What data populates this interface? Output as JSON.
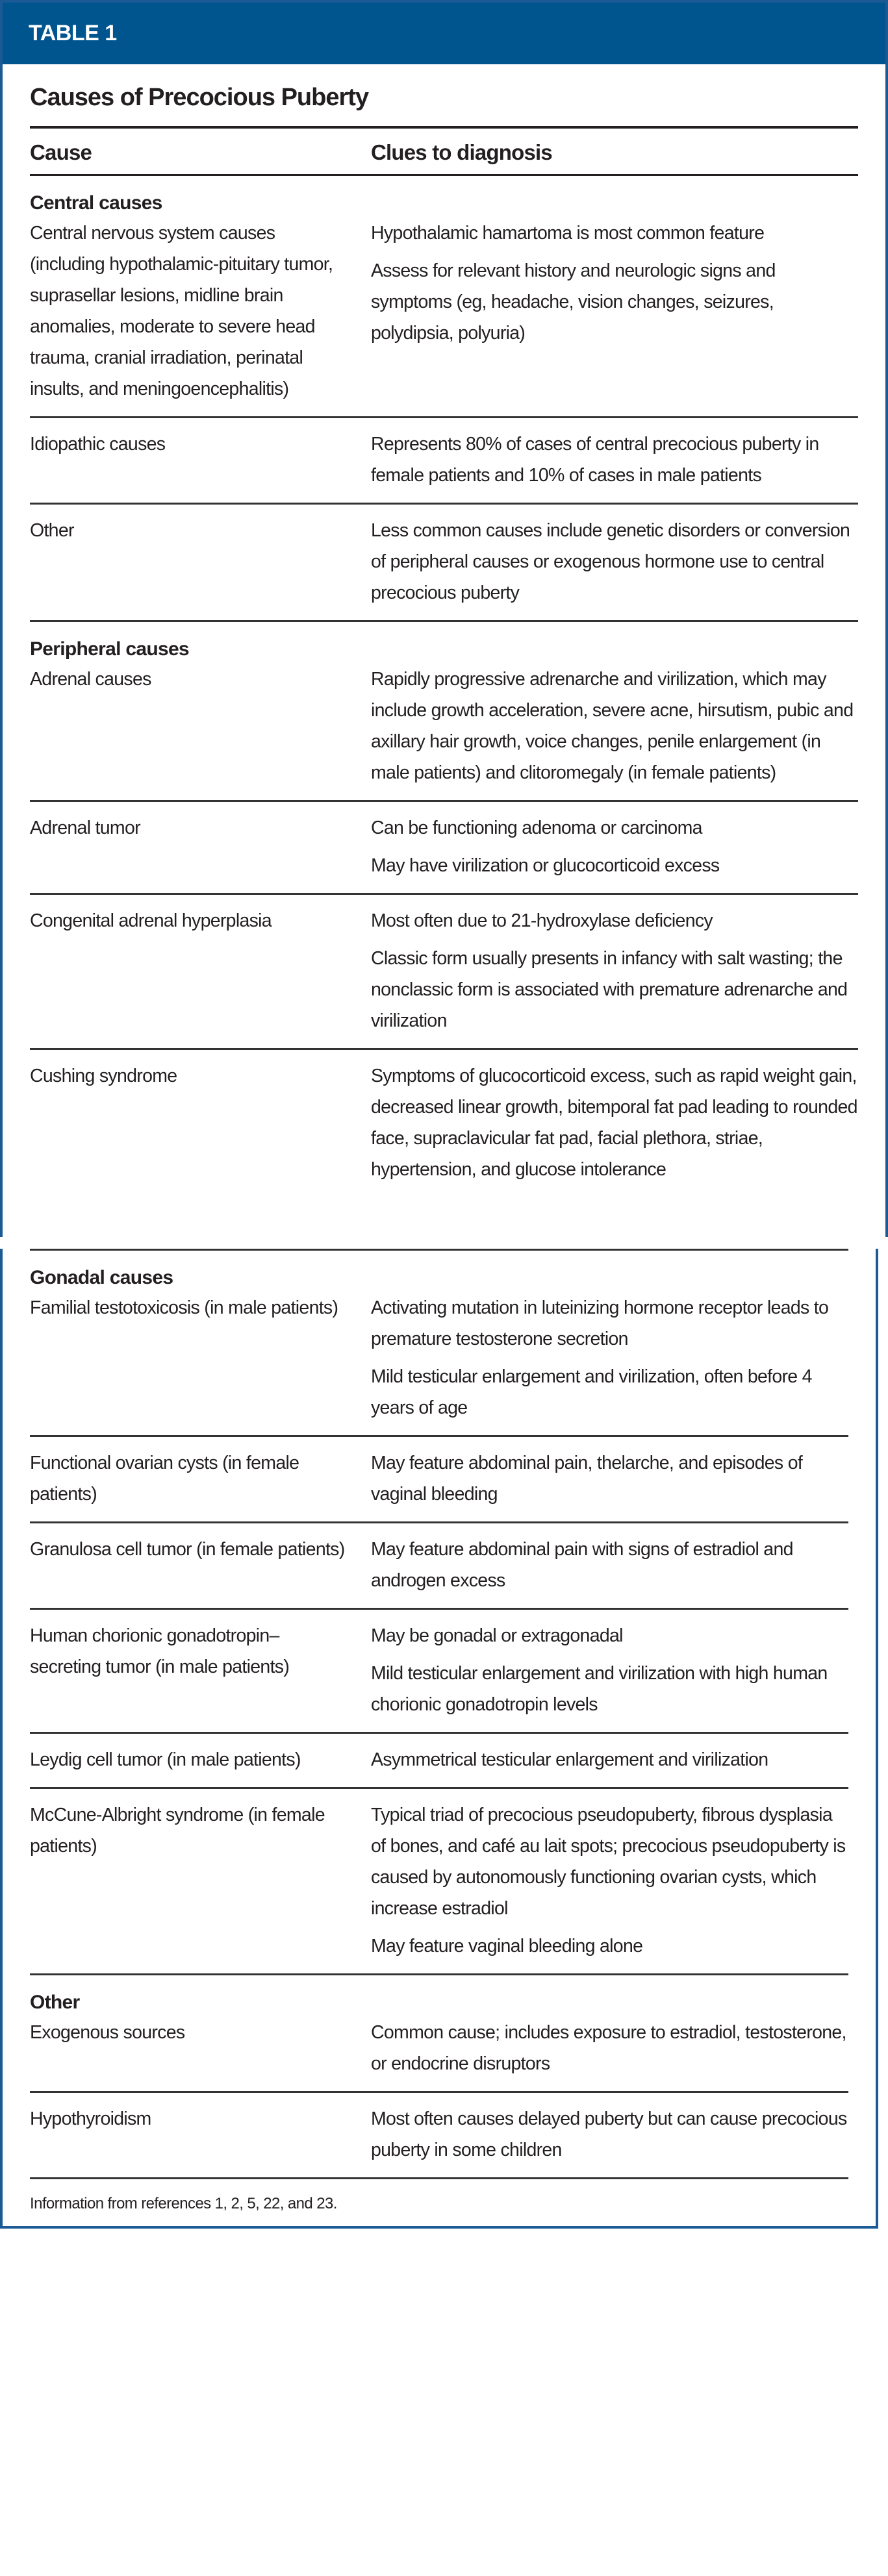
{
  "table_label": "TABLE 1",
  "title": "Causes of Precocious Puberty",
  "columns": [
    "Cause",
    "Clues to diagnosis"
  ],
  "sections": [
    {
      "heading": "Central causes",
      "rows": [
        {
          "cause": "Central nervous system causes (including hypothalamic-pituitary tumor, suprasellar lesions, midline brain anomalies, moderate to severe head trauma, cranial irradiation, perinatal insults, and meningoencephalitis)",
          "clues": [
            "Hypothalamic hamartoma is most common feature",
            "Assess for relevant history and neurologic signs and symptoms (eg, headache, vision changes, seizures, polydipsia, polyuria)"
          ]
        },
        {
          "cause": "Idiopathic causes",
          "clues": [
            "Represents 80% of cases of central precocious puberty in female patients and 10% of cases in male patients"
          ]
        },
        {
          "cause": "Other",
          "clues": [
            "Less common causes include genetic disorders or conversion of peripheral causes or exogenous hormone use to central precocious puberty"
          ]
        }
      ]
    },
    {
      "heading": "Peripheral causes",
      "rows": [
        {
          "cause": "Adrenal causes",
          "clues": [
            "Rapidly progressive adrenarche and virilization, which may include growth acceleration, severe acne, hirsutism, pubic and axillary hair growth, voice changes, penile enlargement (in male patients) and clitoromegaly (in female patients)"
          ]
        },
        {
          "cause": "Adrenal tumor",
          "clues": [
            "Can be functioning adenoma or carcinoma",
            "May have virilization or glucocorticoid excess"
          ]
        },
        {
          "cause": "Congenital adrenal hyperplasia",
          "clues": [
            "Most often due to 21-hydroxylase deficiency",
            "Classic form usually presents in infancy with salt wasting; the nonclassic form is associated with premature adrenarche and virilization"
          ]
        },
        {
          "cause": "Cushing syndrome",
          "clues": [
            "Symptoms of glucocorticoid excess, such as rapid weight gain, decreased linear growth, bitemporal fat pad leading to rounded face, supraclavicular fat pad, facial plethora, striae, hypertension, and glucose intolerance"
          ]
        }
      ]
    },
    {
      "heading": "Gonadal causes",
      "rows": [
        {
          "cause": "Familial testotoxicosis (in male patients)",
          "clues": [
            "Activating mutation in luteinizing hormone receptor leads to premature testosterone secretion",
            "Mild testicular enlargement and virilization, often before 4 years of age"
          ]
        },
        {
          "cause": "Functional ovarian cysts (in female patients)",
          "clues": [
            "May feature abdominal pain, thelarche, and episodes of vaginal bleeding"
          ]
        },
        {
          "cause": "Granulosa cell tumor (in female patients)",
          "clues": [
            "May feature abdominal pain with signs of estradiol and androgen excess"
          ]
        },
        {
          "cause": "Human chorionic gonadotropin–secreting tumor (in male patients)",
          "clues": [
            "May be gonadal or extragonadal",
            "Mild testicular enlargement and virilization with high human chorionic gonadotropin levels"
          ]
        },
        {
          "cause": "Leydig cell tumor (in male patients)",
          "clues": [
            "Asymmetrical testicular enlargement and virilization"
          ]
        },
        {
          "cause": "McCune-Albright syndrome (in female patients)",
          "clues": [
            "Typical triad of precocious pseudopuberty, fibrous dysplasia of bones, and café au lait spots; precocious pseudopuberty is caused by autonomously functioning ovarian cysts, which increase estradiol",
            "May feature vaginal bleeding alone"
          ]
        }
      ]
    },
    {
      "heading": "Other",
      "rows": [
        {
          "cause": "Exogenous sources",
          "clues": [
            "Common cause; includes exposure to estradiol, testosterone, or endocrine disruptors"
          ]
        },
        {
          "cause": "Hypothyroidism",
          "clues": [
            "Most often causes delayed puberty but can cause precocious puberty in some children"
          ]
        }
      ]
    }
  ],
  "footnote": "Information from references 1, 2, 5, 22, and 23.",
  "colors": {
    "band": "#00558f",
    "border": "#1c5a96",
    "text": "#231f20"
  }
}
